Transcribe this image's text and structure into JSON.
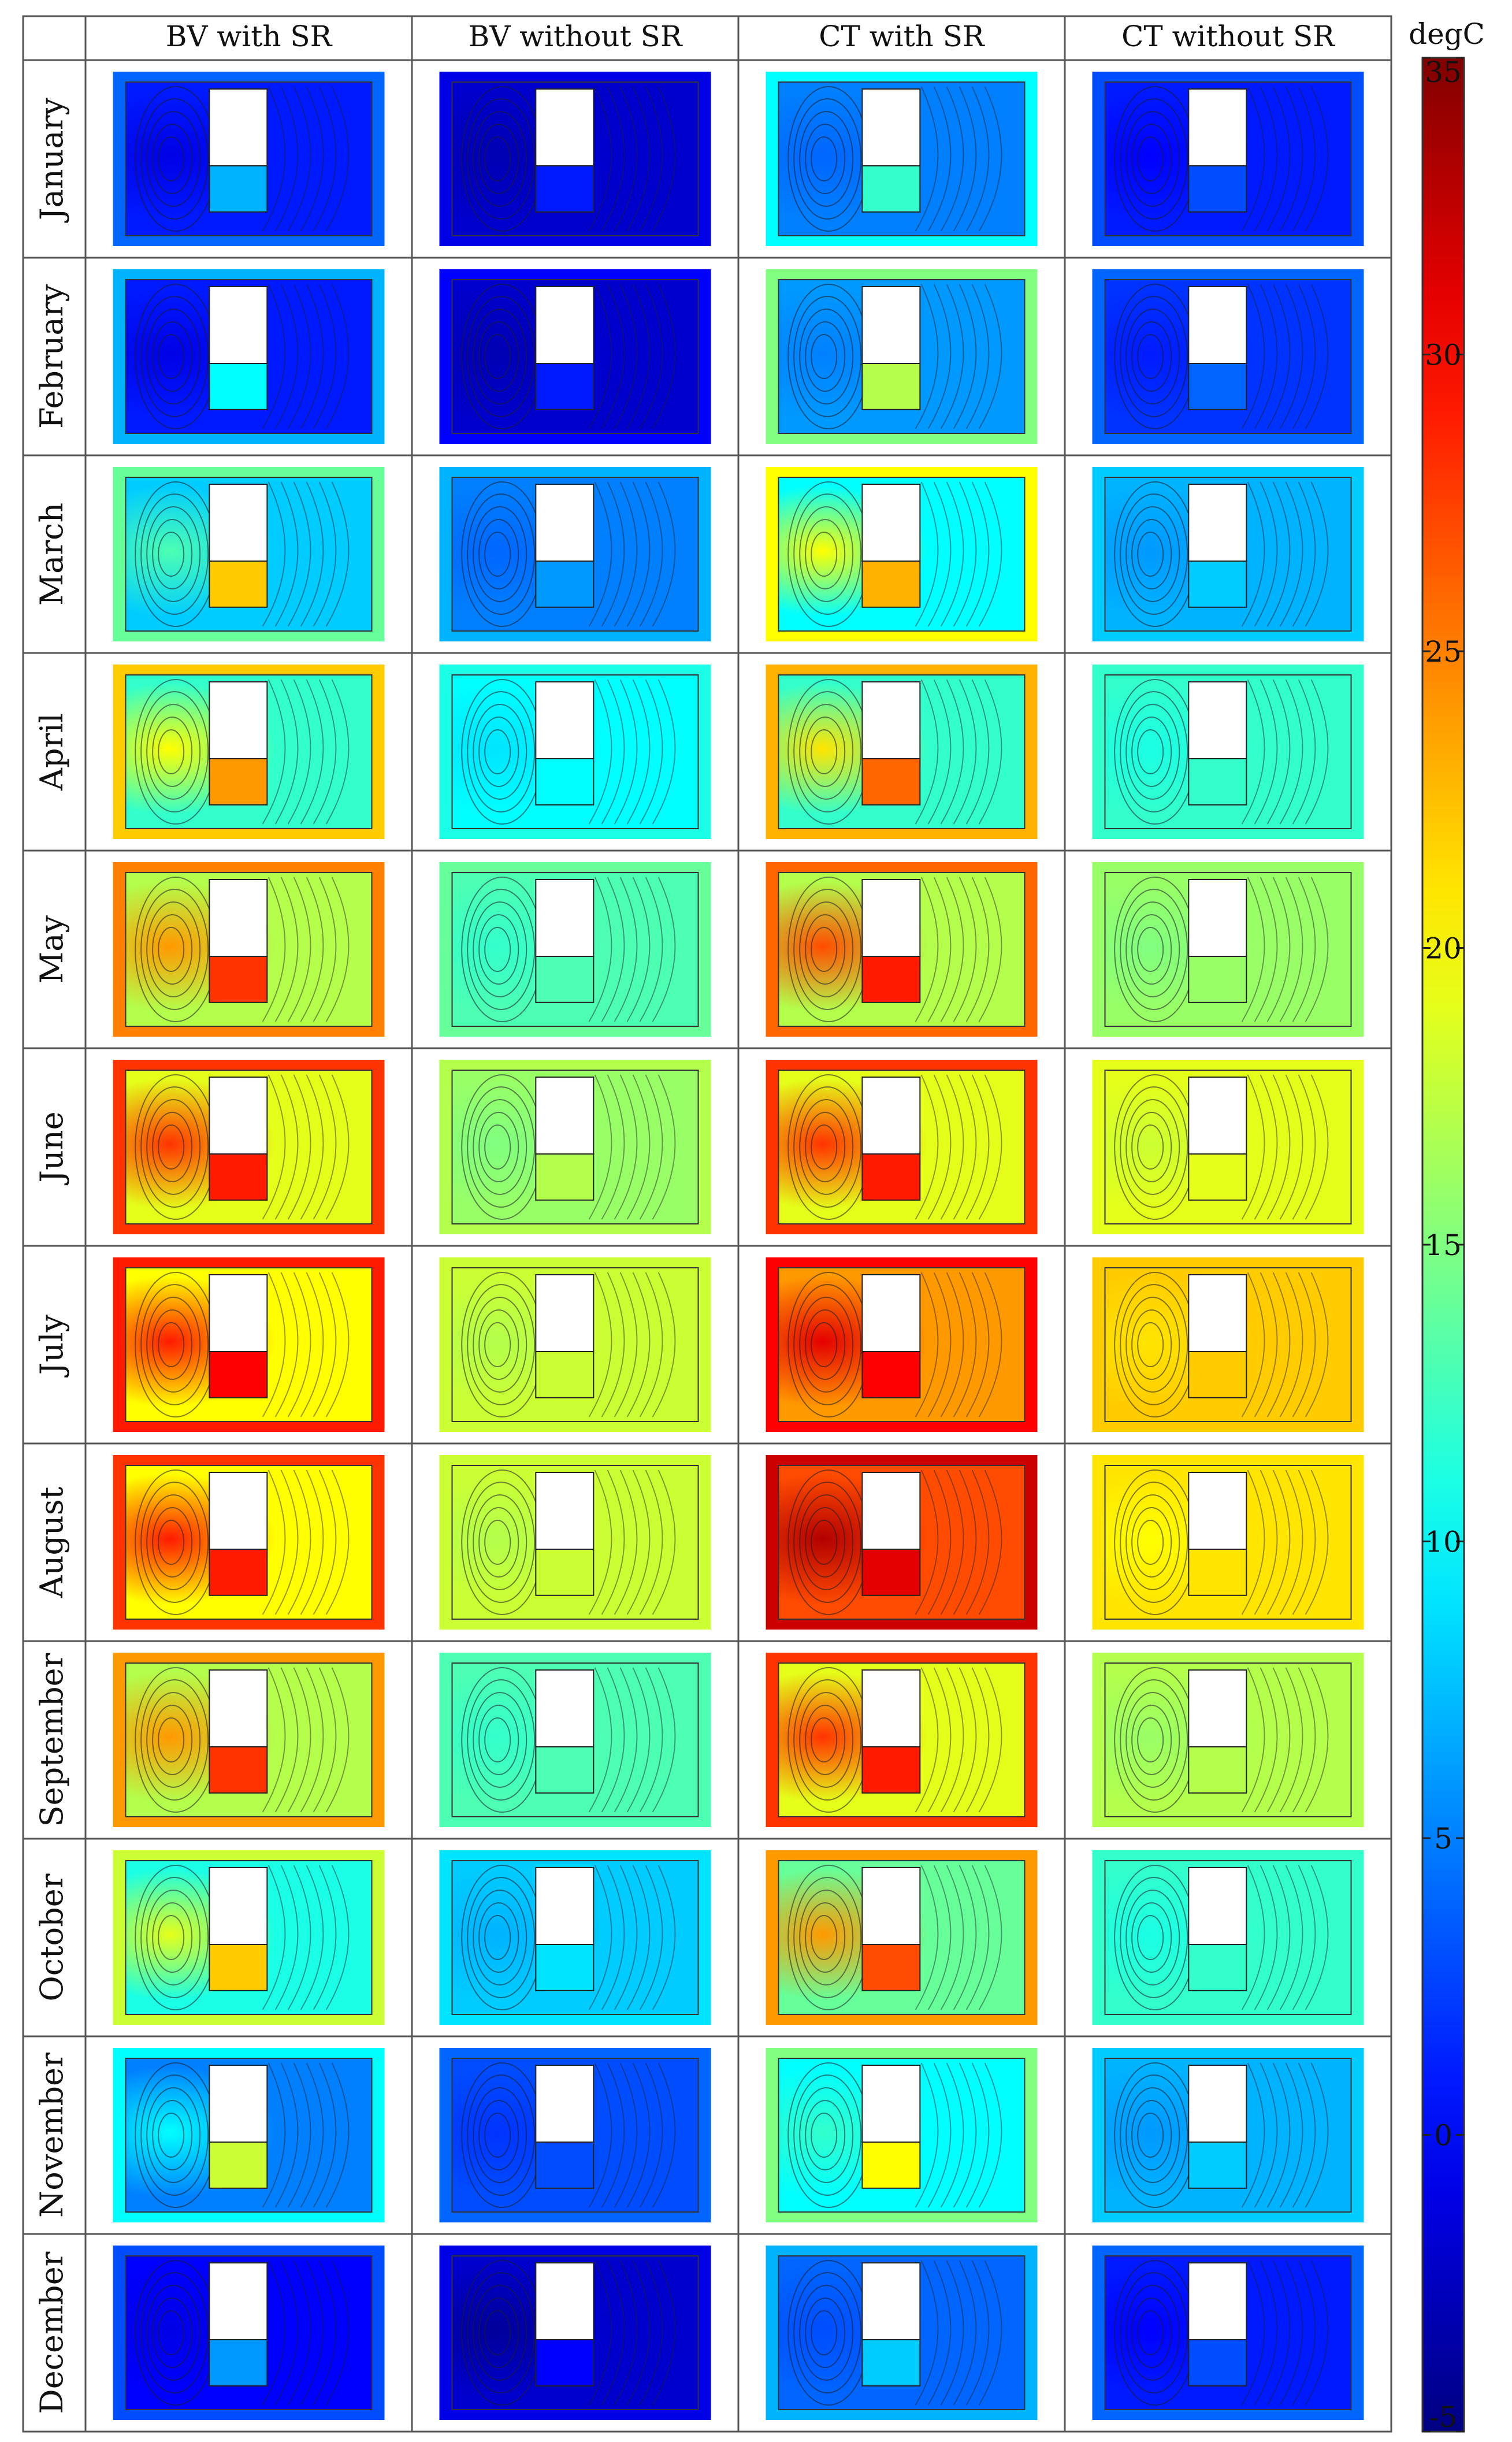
{
  "chart_data": {
    "type": "heatmap",
    "title": "",
    "columns": [
      "BV with SR",
      "BV without SR",
      "CT with SR",
      "CT without SR"
    ],
    "rows": [
      "January",
      "February",
      "March",
      "April",
      "May",
      "June",
      "July",
      "August",
      "September",
      "October",
      "November",
      "December"
    ],
    "colorbar": {
      "unit": "degC",
      "min": -5,
      "max": 35,
      "ticks": [
        35,
        30,
        25,
        20,
        15,
        10,
        5,
        0,
        -5
      ],
      "tick_labels": [
        "35",
        "30",
        "25",
        "20",
        "15",
        "10",
        "5",
        "0",
        "-5"
      ],
      "colormap": "jet"
    },
    "panels": [
      {
        "row": "January",
        "values": [
          {
            "outer": 4,
            "field": 1,
            "vortex": -1,
            "lower": 7
          },
          {
            "outer": -1,
            "field": -2,
            "vortex": -3,
            "lower": 1
          },
          {
            "outer": 10,
            "field": 5,
            "vortex": 4,
            "lower": 12
          },
          {
            "outer": 3,
            "field": 1,
            "vortex": 0,
            "lower": 3
          }
        ]
      },
      {
        "row": "February",
        "values": [
          {
            "outer": 7,
            "field": 1,
            "vortex": -1,
            "lower": 10
          },
          {
            "outer": 0,
            "field": -2,
            "vortex": -3,
            "lower": 1
          },
          {
            "outer": 15,
            "field": 6,
            "vortex": 5,
            "lower": 17
          },
          {
            "outer": 4,
            "field": 2,
            "vortex": 1,
            "lower": 4
          }
        ]
      },
      {
        "row": "March",
        "values": [
          {
            "outer": 14,
            "field": 8,
            "vortex": 13,
            "lower": 22
          },
          {
            "outer": 7,
            "field": 5,
            "vortex": 4,
            "lower": 6
          },
          {
            "outer": 20,
            "field": 10,
            "vortex": 20,
            "lower": 23
          },
          {
            "outer": 8,
            "field": 7,
            "vortex": 6,
            "lower": 8
          }
        ]
      },
      {
        "row": "April",
        "values": [
          {
            "outer": 22,
            "field": 12,
            "vortex": 20,
            "lower": 24
          },
          {
            "outer": 11,
            "field": 10,
            "vortex": 9,
            "lower": 10
          },
          {
            "outer": 23,
            "field": 12,
            "vortex": 21,
            "lower": 26
          },
          {
            "outer": 12,
            "field": 12,
            "vortex": 11,
            "lower": 12
          }
        ]
      },
      {
        "row": "May",
        "values": [
          {
            "outer": 25,
            "field": 17,
            "vortex": 24,
            "lower": 28
          },
          {
            "outer": 14,
            "field": 13,
            "vortex": 12,
            "lower": 13
          },
          {
            "outer": 26,
            "field": 17,
            "vortex": 27,
            "lower": 29
          },
          {
            "outer": 16,
            "field": 16,
            "vortex": 15,
            "lower": 16
          }
        ]
      },
      {
        "row": "June",
        "values": [
          {
            "outer": 28,
            "field": 19,
            "vortex": 28,
            "lower": 29
          },
          {
            "outer": 17,
            "field": 16,
            "vortex": 15,
            "lower": 17
          },
          {
            "outer": 28,
            "field": 19,
            "vortex": 28,
            "lower": 29
          },
          {
            "outer": 19,
            "field": 19,
            "vortex": 18,
            "lower": 19
          }
        ]
      },
      {
        "row": "July",
        "values": [
          {
            "outer": 29,
            "field": 20,
            "vortex": 29,
            "lower": 30
          },
          {
            "outer": 18,
            "field": 18,
            "vortex": 17,
            "lower": 18
          },
          {
            "outer": 30,
            "field": 24,
            "vortex": 31,
            "lower": 30
          },
          {
            "outer": 22,
            "field": 22,
            "vortex": 21,
            "lower": 22
          }
        ]
      },
      {
        "row": "August",
        "values": [
          {
            "outer": 28,
            "field": 20,
            "vortex": 29,
            "lower": 29
          },
          {
            "outer": 18,
            "field": 18,
            "vortex": 17,
            "lower": 18
          },
          {
            "outer": 32,
            "field": 27,
            "vortex": 33,
            "lower": 31
          },
          {
            "outer": 21,
            "field": 21,
            "vortex": 20,
            "lower": 21
          }
        ]
      },
      {
        "row": "September",
        "values": [
          {
            "outer": 24,
            "field": 17,
            "vortex": 24,
            "lower": 28
          },
          {
            "outer": 13,
            "field": 13,
            "vortex": 12,
            "lower": 13
          },
          {
            "outer": 28,
            "field": 19,
            "vortex": 28,
            "lower": 29
          },
          {
            "outer": 17,
            "field": 17,
            "vortex": 16,
            "lower": 17
          }
        ]
      },
      {
        "row": "October",
        "values": [
          {
            "outer": 18,
            "field": 11,
            "vortex": 19,
            "lower": 22
          },
          {
            "outer": 9,
            "field": 8,
            "vortex": 7,
            "lower": 9
          },
          {
            "outer": 24,
            "field": 14,
            "vortex": 24,
            "lower": 27
          },
          {
            "outer": 12,
            "field": 12,
            "vortex": 11,
            "lower": 12
          }
        ]
      },
      {
        "row": "November",
        "values": [
          {
            "outer": 10,
            "field": 5,
            "vortex": 10,
            "lower": 18
          },
          {
            "outer": 4,
            "field": 3,
            "vortex": 2,
            "lower": 3
          },
          {
            "outer": 15,
            "field": 10,
            "vortex": 12,
            "lower": 20
          },
          {
            "outer": 8,
            "field": 7,
            "vortex": 6,
            "lower": 8
          }
        ]
      },
      {
        "row": "December",
        "values": [
          {
            "outer": 3,
            "field": 0,
            "vortex": -1,
            "lower": 6
          },
          {
            "outer": -1,
            "field": -2,
            "vortex": -4,
            "lower": 0
          },
          {
            "outer": 7,
            "field": 4,
            "vortex": 3,
            "lower": 8
          },
          {
            "outer": 4,
            "field": 1,
            "vortex": 0,
            "lower": 3
          }
        ]
      }
    ]
  }
}
